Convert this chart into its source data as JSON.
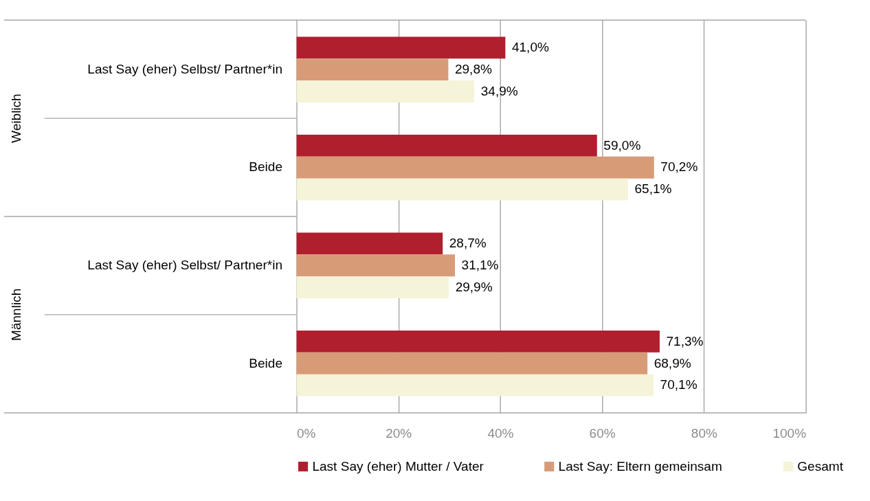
{
  "chart_data": {
    "type": "bar",
    "orientation": "horizontal",
    "categories": [
      "Last Say (eher) Selbst/  Partner*in",
      "Beide",
      "Last Say (eher) Selbst/  Partner*in",
      "Beide"
    ],
    "series": [
      {
        "name": "Last Say (eher) Mutter / Vater",
        "color": "#b01f2e",
        "values": [
          41.0,
          59.0,
          28.7,
          71.3
        ],
        "value_labels": [
          "41,0%",
          "59,0%",
          "28,7%",
          "71,3%"
        ]
      },
      {
        "name": "Last Say: Eltern gemeinsam",
        "color": "#d89b78",
        "values": [
          29.8,
          70.2,
          31.1,
          68.9
        ],
        "value_labels": [
          "29,8%",
          "70,2%",
          "31,1%",
          "68,9%"
        ]
      },
      {
        "name": "Gesamt",
        "color": "#f5f3d8",
        "values": [
          34.9,
          65.1,
          29.9,
          70.1
        ],
        "value_labels": [
          "34,9%",
          "65,1%",
          "29,9%",
          "70,1%"
        ]
      }
    ],
    "annotations": [
      "Weiblich",
      "Männlich"
    ],
    "xlim": [
      0,
      100
    ],
    "xticks": [
      {
        "value": 0,
        "label": "0%"
      },
      {
        "value": 20,
        "label": "20%"
      },
      {
        "value": 40,
        "label": "40%"
      },
      {
        "value": 60,
        "label": "60%"
      },
      {
        "value": 80,
        "label": "80%"
      },
      {
        "value": 100,
        "label": "100%"
      }
    ],
    "grid": "x",
    "legend": "bottom"
  }
}
